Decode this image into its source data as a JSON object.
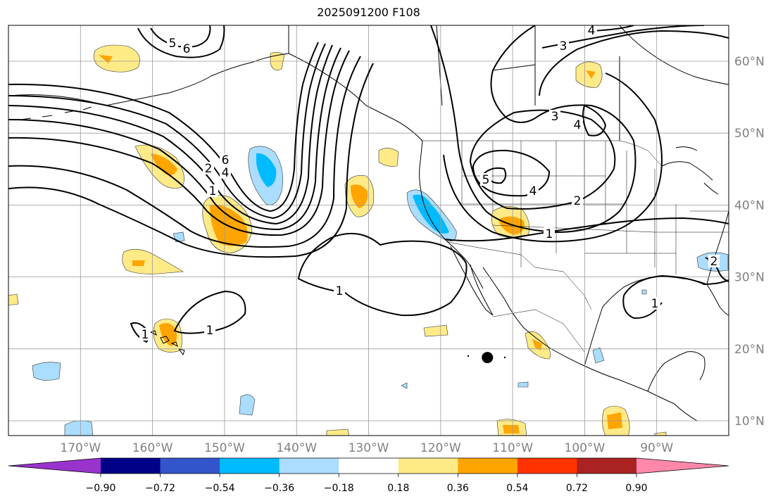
{
  "title": "2025091200 F108",
  "chart_data": {
    "type": "map",
    "longitude_ticks": [
      "170°W",
      "160°W",
      "150°W",
      "140°W",
      "130°W",
      "120°W",
      "110°W",
      "100°W",
      "90°W"
    ],
    "latitude_ticks": [
      "60°N",
      "50°N",
      "40°N",
      "30°N",
      "20°N",
      "10°N"
    ],
    "extent": {
      "lon": [
        -180,
        -80
      ],
      "lat": [
        8,
        65
      ]
    },
    "grid": true,
    "colorbar": {
      "placement": "bottom",
      "extend": "both",
      "tick_labels": [
        "−0.90",
        "−0.72",
        "−0.54",
        "−0.36",
        "−0.18",
        "0.18",
        "0.36",
        "0.54",
        "0.72",
        "0.90"
      ],
      "colors": [
        "#9933cc",
        "#000088",
        "#3355cc",
        "#00bbff",
        "#aaddff",
        "#ffffff",
        "#ffea88",
        "#ffa500",
        "#ff3300",
        "#aa2222",
        "#ff88aa"
      ]
    },
    "contour_labels": [
      "5",
      "6",
      "4",
      "3",
      "3",
      "4",
      "6",
      "4",
      "2",
      "1",
      "5",
      "4",
      "2",
      "1",
      "1",
      "1",
      "1",
      "1",
      "2"
    ],
    "marker": {
      "lon": -113.5,
      "lat": 18.8
    }
  }
}
